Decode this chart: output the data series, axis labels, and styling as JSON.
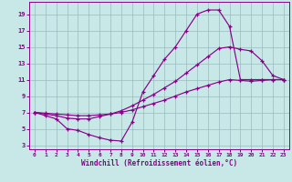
{
  "xlabel": "Windchill (Refroidissement éolien,°C)",
  "background_color": "#c8e8e8",
  "line_color": "#880088",
  "grid_color": "#99bbbb",
  "xlim": [
    -0.5,
    23.5
  ],
  "ylim": [
    2.5,
    20.5
  ],
  "xticks": [
    0,
    1,
    2,
    3,
    4,
    5,
    6,
    7,
    8,
    9,
    10,
    11,
    12,
    13,
    14,
    15,
    16,
    17,
    18,
    19,
    20,
    21,
    22,
    23
  ],
  "yticks": [
    3,
    5,
    7,
    9,
    11,
    13,
    15,
    17,
    19
  ],
  "curve1_x": [
    0,
    1,
    2,
    3,
    4,
    5,
    6,
    7,
    8,
    9,
    10,
    11,
    12,
    13,
    14,
    15,
    16,
    17,
    18,
    19,
    20,
    21,
    22,
    23
  ],
  "curve1_y": [
    7.0,
    6.6,
    6.2,
    5.0,
    4.8,
    4.3,
    3.9,
    3.6,
    3.5,
    5.8,
    9.5,
    11.5,
    13.5,
    15.0,
    17.0,
    19.0,
    19.5,
    19.5,
    17.5,
    11.0,
    11.0,
    11.0,
    11.0,
    11.0
  ],
  "curve2_x": [
    0,
    1,
    2,
    3,
    4,
    5,
    6,
    7,
    8,
    9,
    10,
    11,
    12,
    13,
    14,
    15,
    16,
    17,
    18,
    19,
    20,
    21,
    22,
    23
  ],
  "curve2_y": [
    7.0,
    6.8,
    6.6,
    6.3,
    6.2,
    6.2,
    6.5,
    6.8,
    7.2,
    7.8,
    8.5,
    9.2,
    10.0,
    10.8,
    11.8,
    12.8,
    13.8,
    14.8,
    15.0,
    14.7,
    14.5,
    13.3,
    11.5,
    11.0
  ],
  "curve3_x": [
    0,
    1,
    2,
    3,
    4,
    5,
    6,
    7,
    8,
    9,
    10,
    11,
    12,
    13,
    14,
    15,
    16,
    17,
    18,
    19,
    20,
    21,
    22,
    23
  ],
  "curve3_y": [
    7.0,
    6.9,
    6.8,
    6.7,
    6.6,
    6.6,
    6.7,
    6.8,
    7.0,
    7.3,
    7.7,
    8.1,
    8.5,
    9.0,
    9.5,
    9.9,
    10.3,
    10.7,
    11.0,
    10.9,
    10.8,
    10.9,
    11.0,
    11.0
  ]
}
